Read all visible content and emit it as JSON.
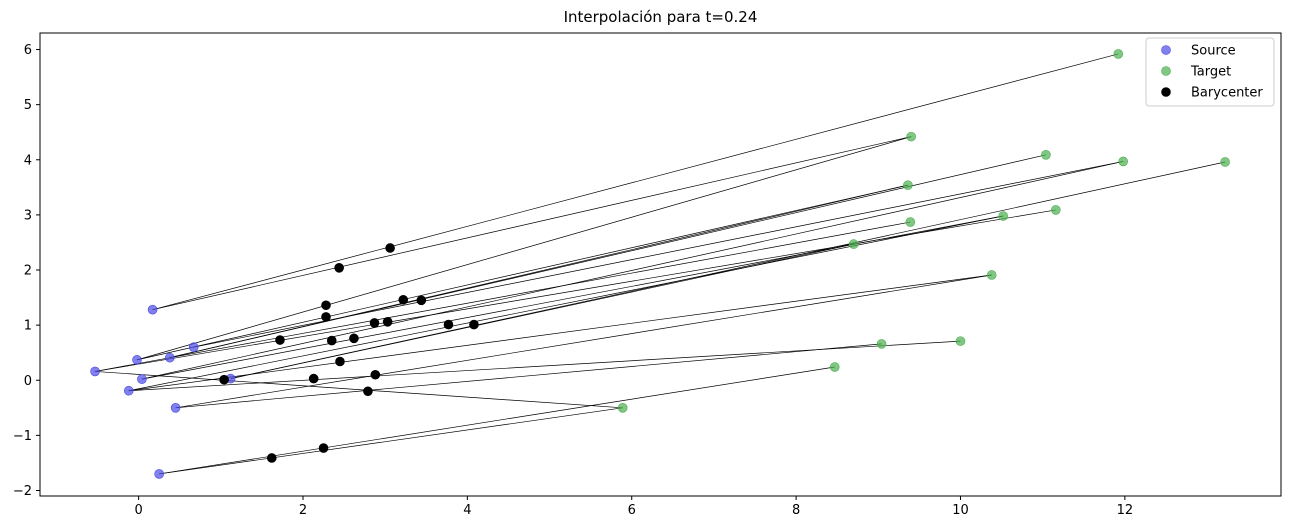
{
  "chart_data": {
    "type": "scatter",
    "title": "Interpolación para t=0.24",
    "xlabel": "",
    "ylabel": "",
    "xlim": [
      -1.2,
      13.9
    ],
    "ylim": [
      -2.1,
      6.3
    ],
    "xticks": [
      0,
      2,
      4,
      6,
      8,
      10,
      12
    ],
    "yticks": [
      -2,
      -1,
      0,
      1,
      2,
      3,
      4,
      5,
      6
    ],
    "grid": false,
    "legend_position": "top-right",
    "series": [
      {
        "name": "Source",
        "color": "#4b4be6",
        "points": [
          [
            0.17,
            1.28
          ],
          [
            -0.02,
            0.37
          ],
          [
            0.38,
            0.41
          ],
          [
            0.67,
            0.6
          ],
          [
            -0.53,
            0.16
          ],
          [
            0.04,
            0.02
          ],
          [
            1.12,
            0.03
          ],
          [
            -0.12,
            -0.19
          ],
          [
            0.45,
            -0.5
          ],
          [
            0.25,
            -1.7
          ]
        ]
      },
      {
        "name": "Target",
        "color": "#4caf50",
        "points": [
          [
            11.92,
            5.92
          ],
          [
            9.4,
            4.42
          ],
          [
            11.04,
            4.09
          ],
          [
            11.98,
            3.97
          ],
          [
            13.22,
            3.96
          ],
          [
            9.36,
            3.54
          ],
          [
            9.39,
            2.87
          ],
          [
            10.52,
            2.98
          ],
          [
            11.16,
            3.09
          ],
          [
            8.7,
            2.47
          ],
          [
            10.38,
            1.91
          ],
          [
            9.04,
            0.66
          ],
          [
            10.0,
            0.71
          ],
          [
            8.47,
            0.24
          ],
          [
            5.89,
            -0.5
          ]
        ]
      },
      {
        "name": "Barycenter",
        "color": "#000000",
        "points": [
          [
            3.06,
            2.4
          ],
          [
            2.44,
            2.04
          ],
          [
            2.28,
            1.36
          ],
          [
            2.28,
            1.15
          ],
          [
            3.22,
            1.46
          ],
          [
            3.44,
            1.45
          ],
          [
            1.72,
            0.73
          ],
          [
            2.35,
            0.72
          ],
          [
            2.62,
            0.76
          ],
          [
            2.87,
            1.04
          ],
          [
            3.03,
            1.06
          ],
          [
            3.77,
            1.01
          ],
          [
            4.08,
            1.01
          ],
          [
            1.04,
            0.01
          ],
          [
            2.13,
            0.03
          ],
          [
            2.45,
            0.34
          ],
          [
            2.88,
            0.1
          ],
          [
            2.79,
            -0.2
          ],
          [
            1.62,
            -1.41
          ],
          [
            2.25,
            -1.23
          ]
        ]
      }
    ],
    "lines": [
      [
        [
          0.17,
          1.28
        ],
        [
          11.92,
          5.92
        ]
      ],
      [
        [
          0.17,
          1.28
        ],
        [
          9.4,
          4.42
        ]
      ],
      [
        [
          -0.02,
          0.37
        ],
        [
          9.4,
          4.42
        ]
      ],
      [
        [
          -0.02,
          0.37
        ],
        [
          9.36,
          3.54
        ]
      ],
      [
        [
          0.38,
          0.41
        ],
        [
          11.04,
          4.09
        ]
      ],
      [
        [
          0.67,
          0.6
        ],
        [
          11.98,
          3.97
        ]
      ],
      [
        [
          0.38,
          0.41
        ],
        [
          9.36,
          3.54
        ]
      ],
      [
        [
          0.04,
          0.02
        ],
        [
          11.98,
          3.97
        ]
      ],
      [
        [
          -0.53,
          0.16
        ],
        [
          9.39,
          2.87
        ]
      ],
      [
        [
          0.04,
          0.02
        ],
        [
          10.52,
          2.98
        ]
      ],
      [
        [
          -0.53,
          0.16
        ],
        [
          11.16,
          3.09
        ]
      ],
      [
        [
          1.12,
          0.03
        ],
        [
          13.22,
          3.96
        ]
      ],
      [
        [
          1.12,
          0.03
        ],
        [
          8.7,
          2.47
        ]
      ],
      [
        [
          -0.12,
          -0.19
        ],
        [
          10.52,
          2.98
        ]
      ],
      [
        [
          -0.12,
          -0.19
        ],
        [
          10.38,
          1.91
        ]
      ],
      [
        [
          0.45,
          -0.5
        ],
        [
          10.38,
          1.91
        ]
      ],
      [
        [
          0.45,
          -0.5
        ],
        [
          9.04,
          0.66
        ]
      ],
      [
        [
          -0.53,
          0.16
        ],
        [
          5.89,
          -0.5
        ]
      ],
      [
        [
          -0.12,
          -0.19
        ],
        [
          10.0,
          0.71
        ]
      ],
      [
        [
          0.25,
          -1.7
        ],
        [
          8.47,
          0.24
        ]
      ],
      [
        [
          0.25,
          -1.7
        ],
        [
          5.89,
          -0.5
        ]
      ]
    ]
  }
}
